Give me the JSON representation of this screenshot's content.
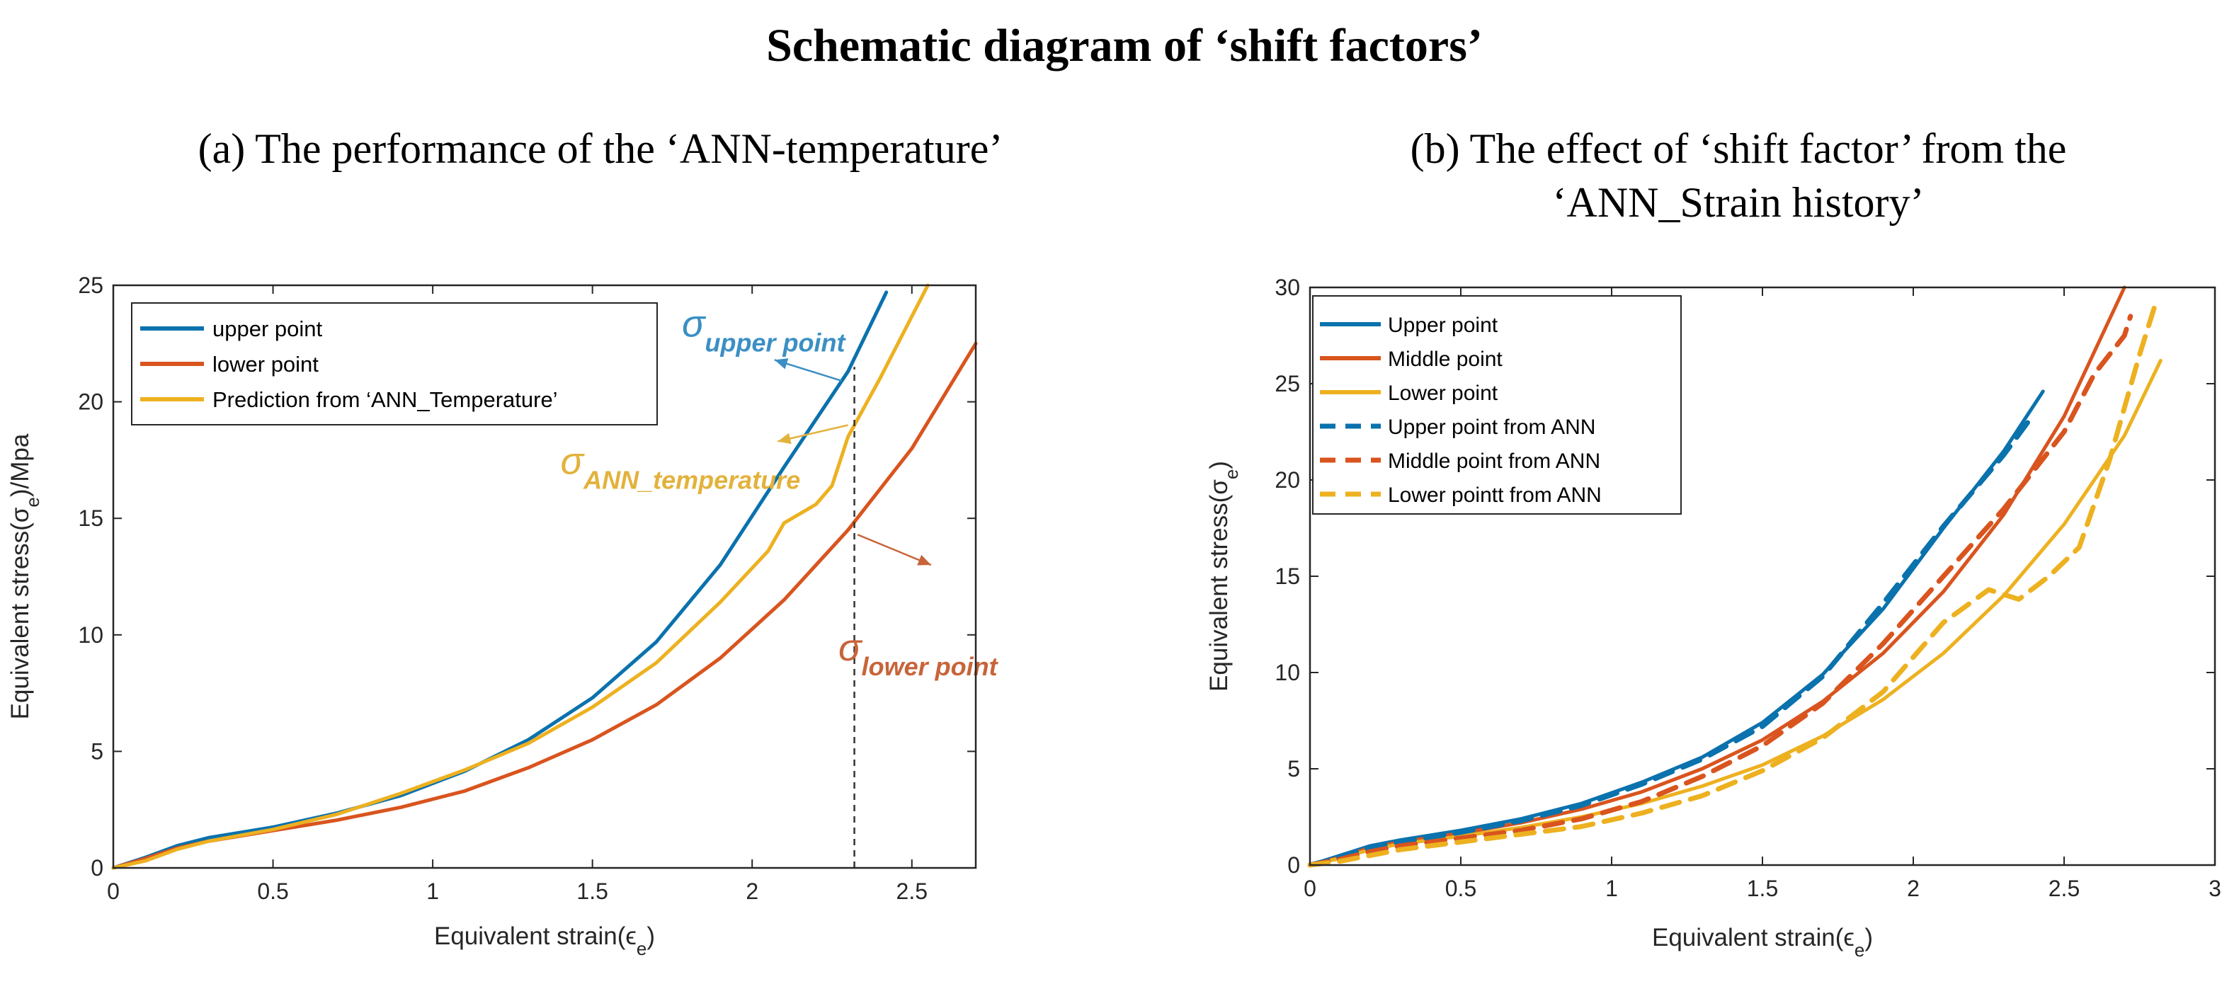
{
  "figure_title": "Schematic diagram of ‘shift factors’",
  "colors": {
    "blue": "#0a72ad",
    "orange": "#d9541e",
    "gold": "#edb120",
    "axis": "#262626",
    "ann_blue": "#3b8fc4",
    "ann_orange": "#c8643a",
    "ann_gold": "#e3b23c"
  },
  "chart_data": [
    {
      "type": "line",
      "title": "(a) The performance of the ‘ANN-temperature’",
      "xlabel": "Equivalent strain(ϵ",
      "xlabel_sub": "e",
      "xlabel_end": ")",
      "ylabel": "Equivalent stress(σ",
      "ylabel_sub": "e",
      "ylabel_end": ")/Mpa",
      "xlim": [
        0,
        2.7
      ],
      "ylim": [
        0,
        25
      ],
      "xticks": [
        0,
        0.5,
        1,
        1.5,
        2,
        2.5
      ],
      "xtick_labels": [
        "0",
        "0.5",
        "1",
        "1.5",
        "2",
        "2.5"
      ],
      "yticks": [
        0,
        5,
        10,
        15,
        20,
        25
      ],
      "ytick_labels": [
        "0",
        "5",
        "10",
        "15",
        "20",
        "25"
      ],
      "legend_position": "top-left",
      "series": [
        {
          "name": "upper point",
          "color": "blue",
          "dash": "solid",
          "x": [
            0,
            0.1,
            0.2,
            0.3,
            0.5,
            0.7,
            0.9,
            1.1,
            1.3,
            1.5,
            1.7,
            1.9,
            2.1,
            2.3,
            2.42
          ],
          "y": [
            0,
            0.45,
            0.95,
            1.3,
            1.75,
            2.35,
            3.1,
            4.15,
            5.5,
            7.3,
            9.7,
            13.0,
            17.2,
            21.3,
            24.7
          ]
        },
        {
          "name": "lower point",
          "color": "orange",
          "dash": "solid",
          "x": [
            0,
            0.1,
            0.2,
            0.3,
            0.5,
            0.7,
            0.9,
            1.1,
            1.3,
            1.5,
            1.7,
            1.9,
            2.1,
            2.3,
            2.5,
            2.7
          ],
          "y": [
            0,
            0.4,
            0.85,
            1.15,
            1.6,
            2.05,
            2.6,
            3.3,
            4.3,
            5.5,
            7.0,
            9.0,
            11.5,
            14.5,
            18.0,
            22.5
          ]
        },
        {
          "name": "Prediction from ‘ANN_Temperature’",
          "color": "gold",
          "dash": "solid",
          "x": [
            0,
            0.1,
            0.2,
            0.3,
            0.5,
            0.7,
            0.9,
            1.1,
            1.3,
            1.5,
            1.7,
            1.9,
            2.05,
            2.1,
            2.15,
            2.2,
            2.25,
            2.3,
            2.4,
            2.55
          ],
          "y": [
            0,
            0.3,
            0.8,
            1.15,
            1.65,
            2.3,
            3.2,
            4.2,
            5.35,
            6.9,
            8.8,
            11.4,
            13.6,
            14.8,
            15.2,
            15.6,
            16.4,
            18.5,
            21.0,
            25.0
          ]
        }
      ],
      "reference_line": {
        "x": 2.32,
        "y_from": 0,
        "y_to": 21.5
      },
      "annotations": [
        {
          "base": "σ",
          "sub": "upper point",
          "color": "ann_blue",
          "text_x": 1.78,
          "text_y": 22.8,
          "arrow_from_x": 2.28,
          "arrow_from_y": 20.9,
          "arrow_to_x": 2.07,
          "arrow_to_y": 21.8
        },
        {
          "base": "σ",
          "sub": "ANN_temperature",
          "color": "ann_gold",
          "text_x": 1.4,
          "text_y": 16.9,
          "arrow_from_x": 2.3,
          "arrow_from_y": 19.0,
          "arrow_to_x": 2.08,
          "arrow_to_y": 18.3
        },
        {
          "base": "σ",
          "sub": "lower point",
          "color": "ann_orange",
          "text_x": 2.27,
          "text_y": 8.9,
          "arrow_from_x": 2.33,
          "arrow_from_y": 14.3,
          "arrow_to_x": 2.56,
          "arrow_to_y": 13.0
        }
      ]
    },
    {
      "type": "line",
      "title_line1": "(b) The effect of ‘shift factor’ from the",
      "title_line2": "‘ANN_Strain history’",
      "xlabel": "Equivalent strain(ϵ",
      "xlabel_sub": "e",
      "xlabel_end": ")",
      "ylabel": "Equivalent stress(σ",
      "ylabel_sub": "e",
      "ylabel_end": ")",
      "xlim": [
        0,
        3
      ],
      "ylim": [
        0,
        30
      ],
      "xticks": [
        0,
        0.5,
        1,
        1.5,
        2,
        2.5,
        3
      ],
      "xtick_labels": [
        "0",
        "0.5",
        "1",
        "1.5",
        "2",
        "2.5",
        "3"
      ],
      "yticks": [
        0,
        5,
        10,
        15,
        20,
        25,
        30
      ],
      "ytick_labels": [
        "0",
        "5",
        "10",
        "15",
        "20",
        "25",
        "30"
      ],
      "legend_position": "top-left",
      "series": [
        {
          "name": "Upper point",
          "color": "blue",
          "dash": "solid",
          "x": [
            0,
            0.1,
            0.2,
            0.3,
            0.5,
            0.7,
            0.9,
            1.1,
            1.3,
            1.5,
            1.7,
            1.9,
            2.1,
            2.3,
            2.43
          ],
          "y": [
            0,
            0.5,
            1.0,
            1.3,
            1.8,
            2.4,
            3.2,
            4.3,
            5.6,
            7.4,
            9.9,
            13.3,
            17.5,
            21.5,
            24.6
          ]
        },
        {
          "name": "Middle point",
          "color": "orange",
          "dash": "solid",
          "x": [
            0,
            0.1,
            0.2,
            0.3,
            0.5,
            0.7,
            0.9,
            1.1,
            1.3,
            1.5,
            1.7,
            1.9,
            2.1,
            2.3,
            2.5,
            2.7
          ],
          "y": [
            0,
            0.4,
            0.9,
            1.2,
            1.65,
            2.2,
            2.9,
            3.8,
            5.0,
            6.5,
            8.5,
            11.0,
            14.2,
            18.2,
            23.3,
            30.0
          ]
        },
        {
          "name": "Lower point",
          "color": "gold",
          "dash": "solid",
          "x": [
            0,
            0.1,
            0.2,
            0.3,
            0.5,
            0.7,
            0.9,
            1.1,
            1.3,
            1.5,
            1.7,
            1.9,
            2.1,
            2.3,
            2.5,
            2.7,
            2.82
          ],
          "y": [
            0,
            0.35,
            0.8,
            1.1,
            1.5,
            1.95,
            2.5,
            3.2,
            4.1,
            5.2,
            6.7,
            8.6,
            11.0,
            14.0,
            17.7,
            22.3,
            26.2
          ]
        },
        {
          "name": "Upper point from ANN",
          "color": "blue",
          "dash": "dashed",
          "x": [
            0,
            0.1,
            0.2,
            0.3,
            0.5,
            0.7,
            0.9,
            1.1,
            1.3,
            1.5,
            1.7,
            1.9,
            2.1,
            2.3,
            2.38
          ],
          "y": [
            0,
            0.4,
            0.9,
            1.2,
            1.7,
            2.3,
            3.1,
            4.2,
            5.5,
            7.2,
            9.8,
            13.6,
            17.6,
            21.3,
            23.0
          ]
        },
        {
          "name": "Middle point from ANN",
          "color": "orange",
          "dash": "dashed",
          "x": [
            0,
            0.1,
            0.2,
            0.3,
            0.5,
            0.7,
            0.9,
            1.1,
            1.3,
            1.5,
            1.7,
            1.9,
            2.1,
            2.3,
            2.5,
            2.6,
            2.7,
            2.72
          ],
          "y": [
            0,
            0.3,
            0.7,
            1.0,
            1.4,
            1.8,
            2.4,
            3.3,
            4.6,
            6.2,
            8.4,
            11.5,
            15.0,
            18.5,
            22.5,
            25.5,
            27.5,
            28.5
          ]
        },
        {
          "name": "Lower pointt from ANN",
          "color": "gold",
          "dash": "dashed",
          "x": [
            0,
            0.1,
            0.2,
            0.3,
            0.5,
            0.7,
            0.9,
            1.1,
            1.3,
            1.5,
            1.7,
            1.9,
            2.1,
            2.25,
            2.35,
            2.45,
            2.55,
            2.65,
            2.75,
            2.8
          ],
          "y": [
            0,
            0.2,
            0.5,
            0.8,
            1.2,
            1.6,
            2.0,
            2.7,
            3.6,
            4.9,
            6.6,
            9.0,
            12.6,
            14.3,
            13.8,
            15.0,
            16.5,
            21.0,
            26.5,
            29.0
          ]
        }
      ]
    }
  ]
}
